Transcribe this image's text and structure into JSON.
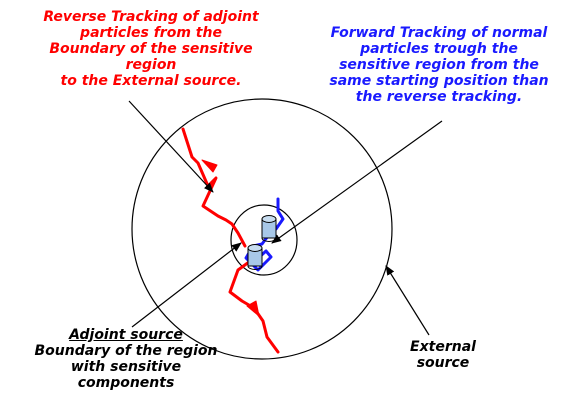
{
  "labels": {
    "reverse": [
      "Reverse  Tracking of adjoint",
      "particles from the",
      "Boundary of the sensitive",
      "region",
      "to the External source."
    ],
    "forward": [
      "Forward  Tracking of normal",
      "particles trough the",
      "sensitive region  from the",
      "same starting position than",
      "the reverse tracking."
    ],
    "adjoint": {
      "title": "Adjoint source",
      "lines": [
        "Boundary of the region",
        "with sensitive",
        "components"
      ]
    },
    "external": [
      "External",
      "source"
    ]
  },
  "colors": {
    "reverse_track": "#ff0000",
    "forward_track": "#1a1aff",
    "component_fill": "#a8c8e8",
    "outline": "#000000"
  },
  "icons": {
    "component": "cylinder-icon"
  }
}
